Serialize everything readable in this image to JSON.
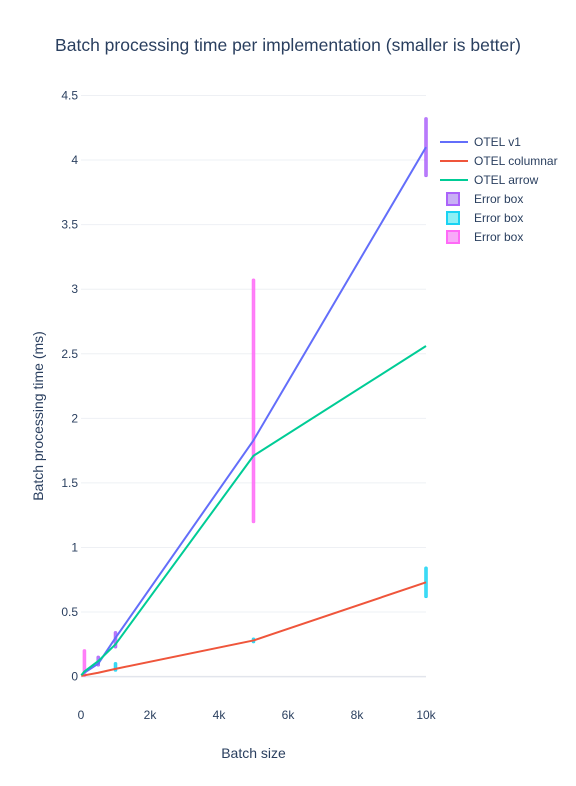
{
  "chart_data": {
    "type": "line",
    "title": "Batch processing time per implementation (smaller is better)",
    "xlabel": "Batch size",
    "ylabel": "Batch processing time (ms)",
    "xlim": [
      0,
      10000
    ],
    "ylim": [
      -0.22,
      4.62
    ],
    "x_ticks": [
      0,
      2000,
      4000,
      6000,
      8000,
      10000
    ],
    "x_tick_labels": [
      "0",
      "2k",
      "4k",
      "6k",
      "8k",
      "10k"
    ],
    "y_ticks": [
      0,
      0.5,
      1,
      1.5,
      2,
      2.5,
      3,
      3.5,
      4,
      4.5
    ],
    "y_tick_labels": [
      "0",
      "0.5",
      "1",
      "1.5",
      "2",
      "2.5",
      "3",
      "3.5",
      "4",
      "4.5"
    ],
    "grid": true,
    "legend_position": "top-right",
    "series": [
      {
        "name": "OTEL v1",
        "color": "#636efa",
        "x": [
          10,
          100,
          500,
          1000,
          5000,
          10000
        ],
        "y": [
          0.01,
          0.03,
          0.1,
          0.3,
          1.83,
          4.1
        ]
      },
      {
        "name": "OTEL columnar",
        "color": "#ef553b",
        "x": [
          10,
          100,
          500,
          1000,
          5000,
          10000
        ],
        "y": [
          0.005,
          0.01,
          0.03,
          0.06,
          0.28,
          0.73
        ]
      },
      {
        "name": "OTEL arrow",
        "color": "#00cc96",
        "x": [
          10,
          100,
          500,
          1000,
          5000,
          10000
        ],
        "y": [
          0.01,
          0.04,
          0.12,
          0.25,
          1.71,
          2.56
        ]
      }
    ],
    "error_boxes": [
      {
        "name": "Error box",
        "fill": "#c8b0f5",
        "line": "#ab63fa",
        "boxes": [
          {
            "x": 500,
            "low": 0.08,
            "high": 0.16
          },
          {
            "x": 1000,
            "low": 0.22,
            "high": 0.35
          },
          {
            "x": 10000,
            "low": 3.87,
            "high": 4.33
          }
        ]
      },
      {
        "name": "Error box",
        "fill": "#8df0f5",
        "line": "#19d3f3",
        "boxes": [
          {
            "x": 1000,
            "low": 0.04,
            "high": 0.11
          },
          {
            "x": 5000,
            "low": 0.26,
            "high": 0.3
          },
          {
            "x": 10000,
            "low": 0.61,
            "high": 0.85
          }
        ]
      },
      {
        "name": "Error box",
        "fill": "#f8aaf8",
        "line": "#ff6af7",
        "boxes": [
          {
            "x": 100,
            "low": 0.0,
            "high": 0.21
          },
          {
            "x": 5000,
            "low": 1.19,
            "high": 3.08
          }
        ]
      }
    ]
  }
}
